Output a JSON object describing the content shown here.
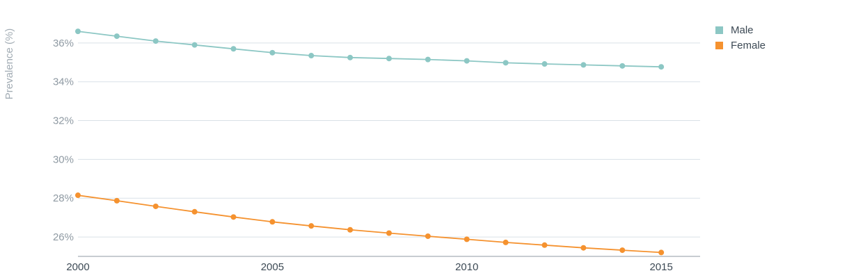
{
  "chart_data": {
    "type": "line",
    "title": "",
    "xlabel": "",
    "ylabel": "Prevalence (%)",
    "x": [
      2000,
      2001,
      2002,
      2003,
      2004,
      2005,
      2006,
      2007,
      2008,
      2009,
      2010,
      2011,
      2012,
      2013,
      2014,
      2015
    ],
    "xlim": [
      2000,
      2016
    ],
    "ylim": [
      25,
      37.5
    ],
    "x_ticks": [
      {
        "value": 2000,
        "label": "2000"
      },
      {
        "value": 2005,
        "label": "2005"
      },
      {
        "value": 2010,
        "label": "2010"
      },
      {
        "value": 2015,
        "label": "2015"
      }
    ],
    "y_ticks": [
      {
        "value": 26,
        "label": "26%"
      },
      {
        "value": 28,
        "label": "28%"
      },
      {
        "value": 30,
        "label": "30%"
      },
      {
        "value": 32,
        "label": "32%"
      },
      {
        "value": 34,
        "label": "34%"
      },
      {
        "value": 36,
        "label": "36%"
      }
    ],
    "grid": true,
    "legend_position": "top-right",
    "series": [
      {
        "name": "Male",
        "color": "#8cc7c4",
        "values": [
          36.6,
          36.35,
          36.1,
          35.9,
          35.7,
          35.5,
          35.35,
          35.25,
          35.2,
          35.15,
          35.08,
          34.98,
          34.92,
          34.87,
          34.82,
          34.77
        ]
      },
      {
        "name": "Female",
        "color": "#f5922f",
        "values": [
          28.15,
          27.87,
          27.58,
          27.3,
          27.03,
          26.78,
          26.57,
          26.37,
          26.2,
          26.04,
          25.88,
          25.72,
          25.58,
          25.44,
          25.32,
          25.2
        ]
      }
    ]
  }
}
